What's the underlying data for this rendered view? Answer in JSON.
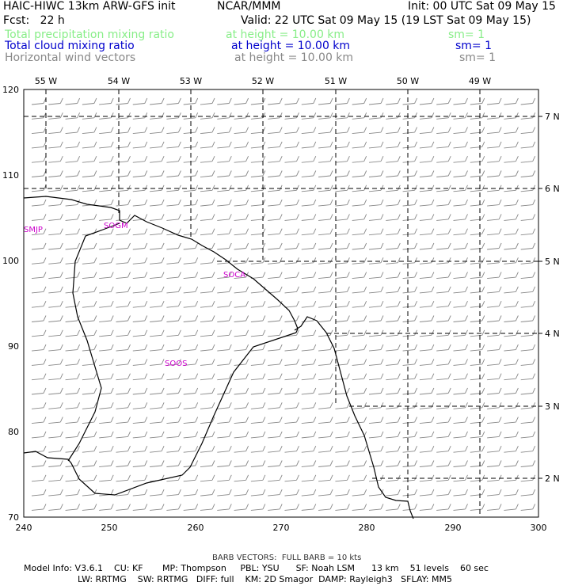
{
  "header": {
    "model": "HAIC-HIWC 13km ARW-GFS init",
    "org": "NCAR/MMM",
    "init": "Init: 00 UTC Sat 09 May 15",
    "fcst": "Fcst:   22 h",
    "valid": "Valid: 22 UTC Sat 09 May 15 (19 LST Sat 09 May 15)"
  },
  "fields": [
    {
      "name": "Total precipitation mixing ratio",
      "level": "at height = 10.00 km",
      "sm": "sm= 1",
      "color": "#88ee88"
    },
    {
      "name": "Total cloud mixing ratio",
      "level": "at height = 10.00 km",
      "sm": "sm= 1",
      "color": "#0000cc"
    },
    {
      "name": "Horizontal wind vectors",
      "level": "at height = 10.00 km",
      "sm": "sm= 1",
      "color": "#888888"
    }
  ],
  "map": {
    "x_ticks": [
      "240",
      "250",
      "260",
      "270",
      "280",
      "290",
      "300"
    ],
    "y_ticks": [
      "70",
      "80",
      "90",
      "100",
      "110",
      "120"
    ],
    "lon_labels": [
      "55 W",
      "54 W",
      "53 W",
      "52 W",
      "51 W",
      "50 W",
      "49 W"
    ],
    "lat_labels": [
      "7 N",
      "6 N",
      "5 N",
      "4 N",
      "3 N",
      "2 N"
    ],
    "stations": [
      "SMJP",
      "SOGM",
      "SOCA",
      "SOOS"
    ],
    "coast_color": "#000000",
    "barb_color": "#888888",
    "station_color": "#cc00cc"
  },
  "footer": {
    "barb_note": "BARB VECTORS:  FULL BARB = 10 kts",
    "line1": "Model Info: V3.6.1    CU: KF       MP: Thompson     PBL: YSU      SF: Noah LSM      13 km    51 levels    60 sec",
    "line2": "LW: RRTMG    SW: RRTMG   DIFF: full    KM: 2D Smagor  DAMP: Rayleigh3   SFLAY: MM5"
  }
}
